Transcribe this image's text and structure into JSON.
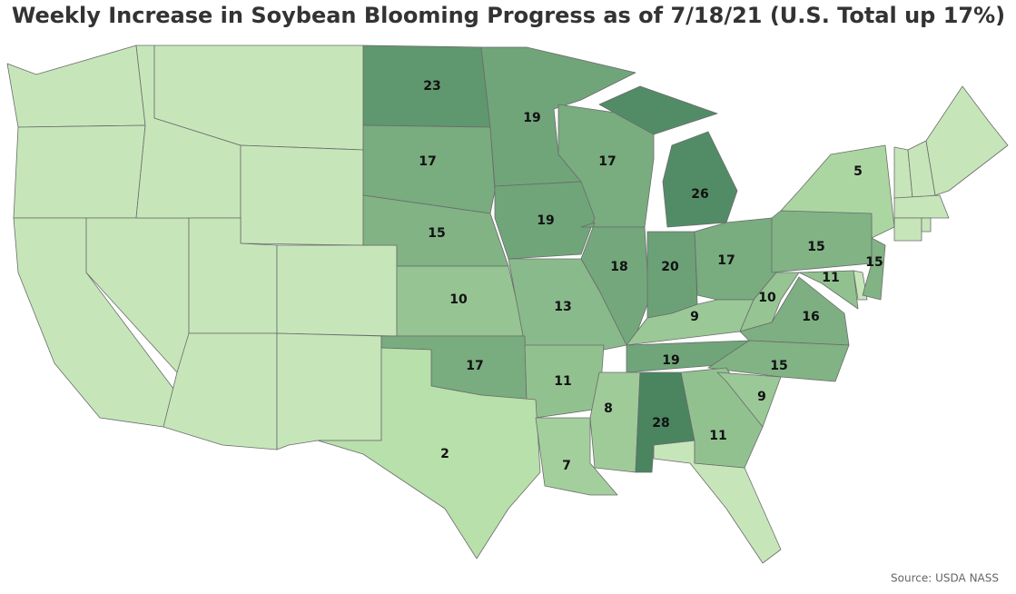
{
  "chart_data": {
    "type": "choropleth",
    "title": "Weekly Increase in Soybean Blooming Progress as of 7/18/21 (U.S. Total up 17%)",
    "values": [
      23,
      17,
      19,
      17,
      26,
      5,
      15,
      19,
      18,
      20,
      17,
      15,
      15,
      10,
      13,
      9,
      10,
      11,
      16,
      17,
      11,
      19,
      15,
      8,
      28,
      11,
      9,
      2,
      7
    ],
    "color_range": [
      "#b8e0aa",
      "#4a8560"
    ],
    "no_data_color": "#c6e6ba",
    "source": "Source: USDA NASS"
  }
}
